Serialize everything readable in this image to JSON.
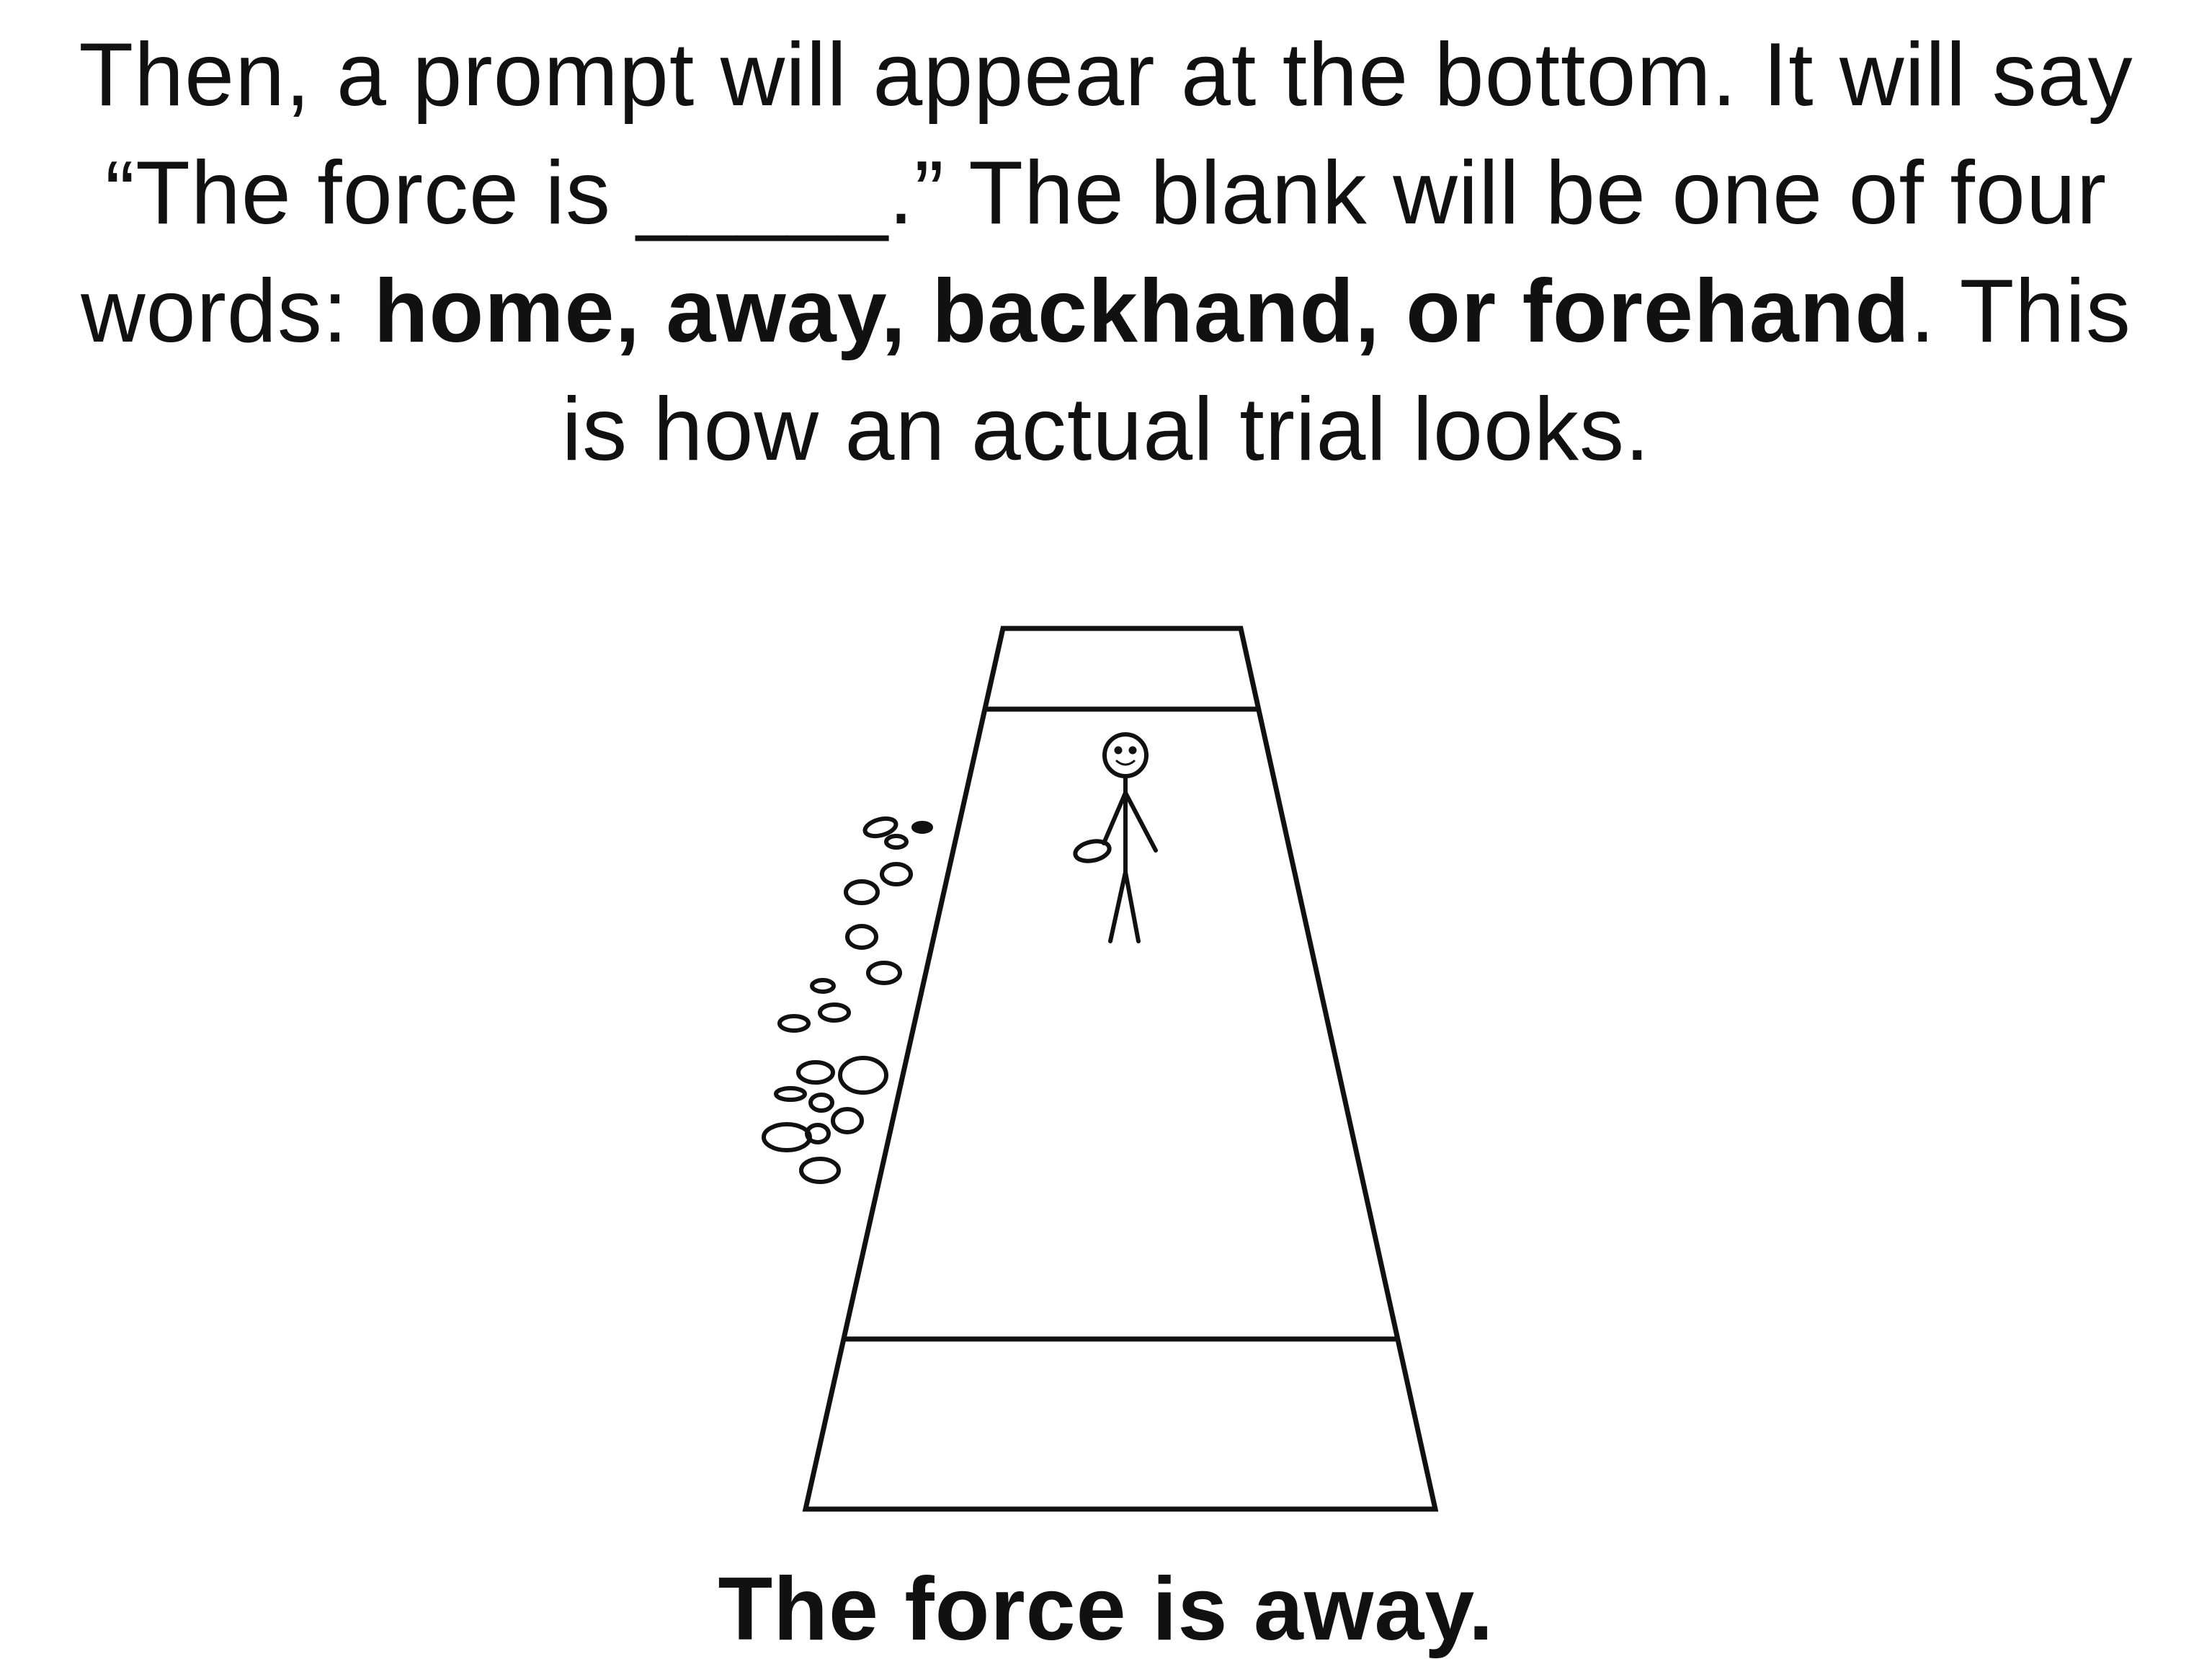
{
  "slide": {
    "instructions": {
      "p1": "Then, a prompt will appear at the bottom. It will say “The force is _____.” The blank will be one of four words: ",
      "options": "home, away, backhand, or forehand",
      "p2": ". This is how an actual trial looks."
    },
    "prompt": "The force is away."
  },
  "colors": {
    "ink": "#111111",
    "background": "#ffffff"
  },
  "icons": {
    "figure": "stick-figure-with-disc",
    "trail": "disc-trail-ellipses"
  }
}
